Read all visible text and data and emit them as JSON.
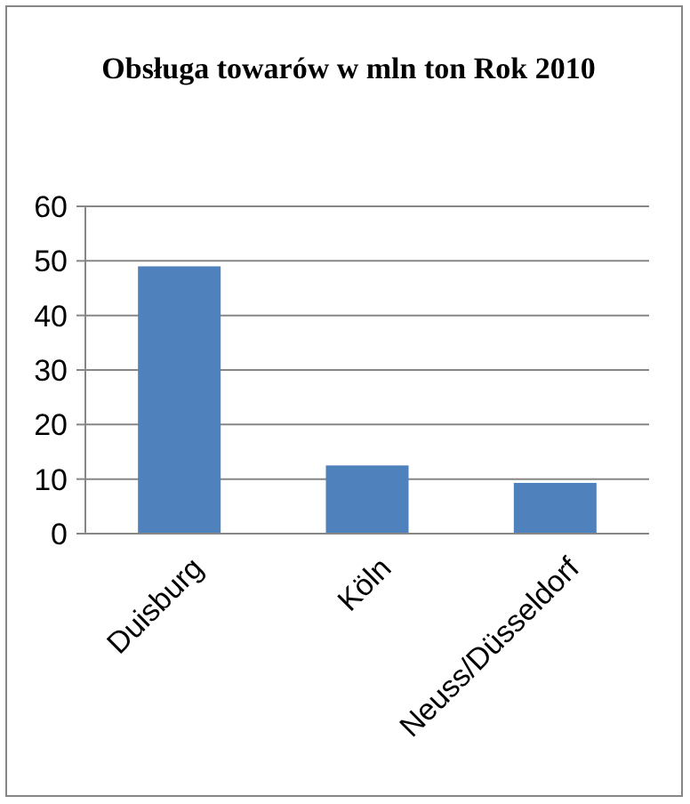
{
  "chart_data": {
    "type": "bar",
    "title": "Obsługa towarów w mln ton Rok 2010",
    "categories": [
      "Duisburg",
      "Köln",
      "Neuss/Düsseldorf"
    ],
    "values": [
      49,
      12.5,
      9.3
    ],
    "color": "#4f81bd",
    "ylim": [
      0,
      60
    ],
    "yticks": [
      0,
      10,
      20,
      30,
      40,
      50,
      60
    ],
    "grid": "y"
  }
}
